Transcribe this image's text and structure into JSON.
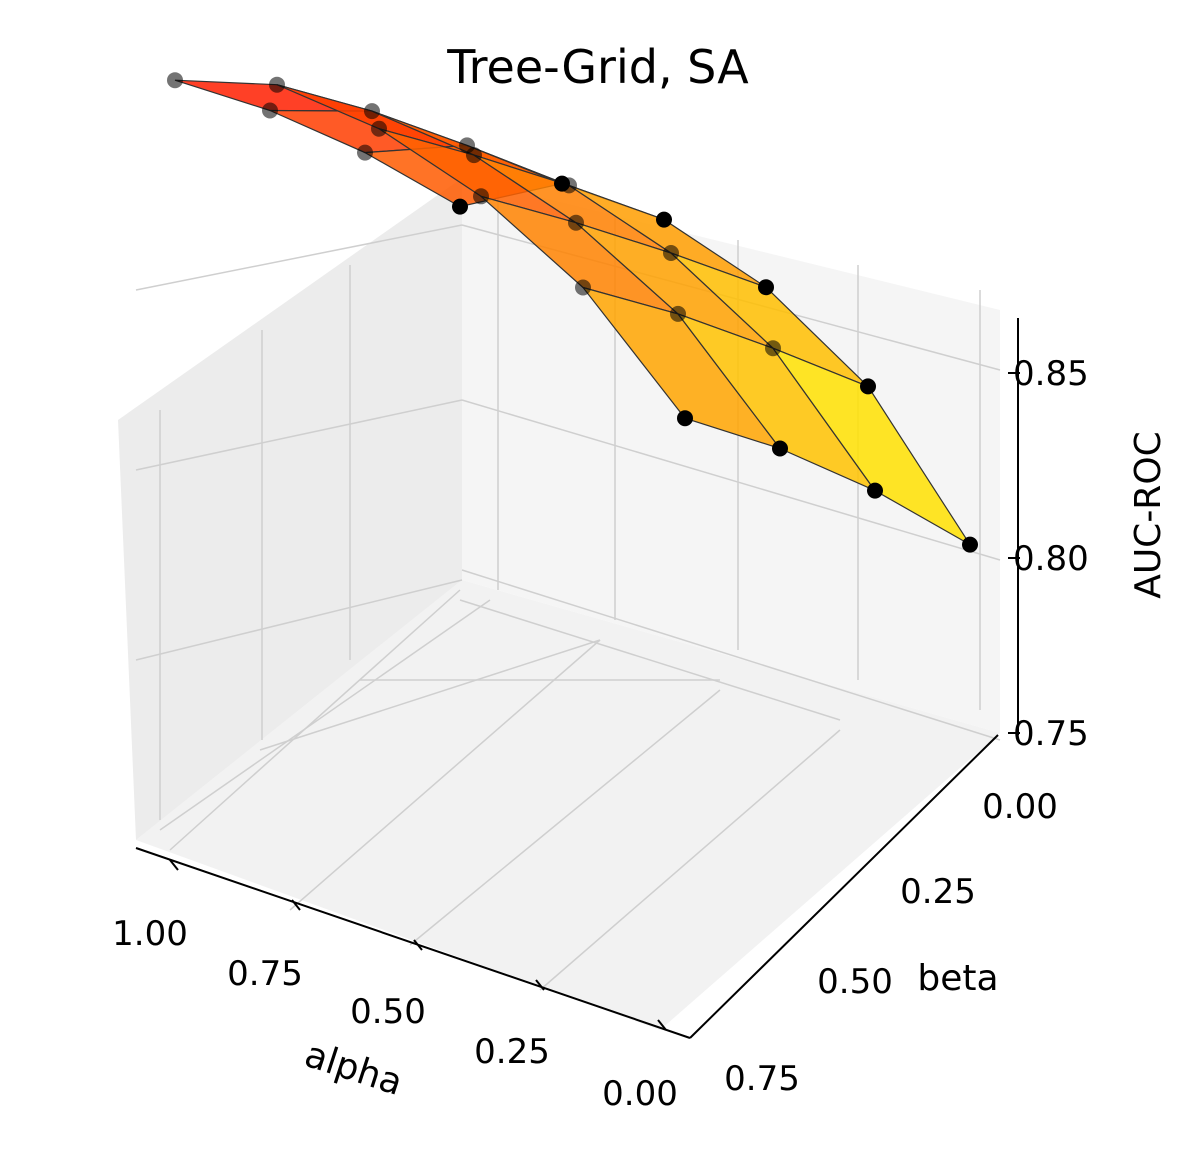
{
  "chart_data": {
    "type": "surface3d",
    "title": "Tree-Grid, SA",
    "xlabel": "alpha",
    "ylabel": "beta",
    "zlabel": "AUC-ROC",
    "alpha_ticks": [
      "1.00",
      "0.75",
      "0.50",
      "0.25",
      "0.00"
    ],
    "beta_ticks": [
      "0.00",
      "0.25",
      "0.50",
      "0.75"
    ],
    "z_ticks": [
      "0.75",
      "0.80",
      "0.85"
    ],
    "alpha": [
      0.0,
      0.2,
      0.4,
      0.6,
      0.8,
      1.0
    ],
    "beta": [
      0.0,
      0.25,
      0.5,
      0.75
    ],
    "zlim": [
      0.75,
      0.86
    ],
    "colormap": [
      "#ff0000",
      "#ffff00"
    ],
    "grid": true,
    "auc": [
      [
        0.836,
        0.828,
        0.817,
        0.803
      ],
      [
        0.852,
        0.845,
        0.836,
        0.826
      ],
      [
        0.858,
        0.851,
        0.843,
        0.834
      ],
      [
        0.858,
        0.851,
        0.843,
        0.834
      ],
      [
        0.852,
        0.845,
        0.836,
        0.826
      ],
      [
        0.836,
        0.828,
        0.817,
        0.803
      ]
    ],
    "marker_color": "#000000"
  }
}
